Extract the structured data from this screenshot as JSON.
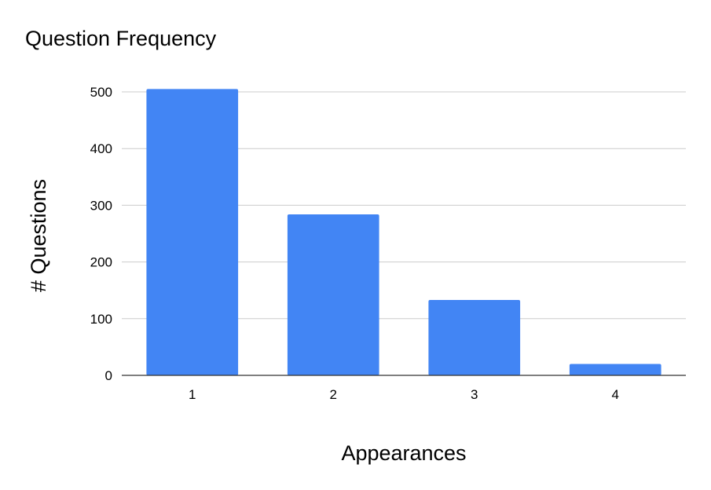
{
  "chart_data": {
    "type": "bar",
    "title": "Question Frequency",
    "xlabel": "Appearances",
    "ylabel": "# Questions",
    "categories": [
      "1",
      "2",
      "3",
      "4"
    ],
    "values": [
      505,
      284,
      133,
      20
    ],
    "ylim": [
      0,
      500
    ],
    "yticks": [
      "0",
      "100",
      "200",
      "300",
      "400",
      "500"
    ],
    "grid": true,
    "legend": "none",
    "bar_color": "#4285f4",
    "grid_color": "#cccccc",
    "axis_color": "#333333"
  }
}
